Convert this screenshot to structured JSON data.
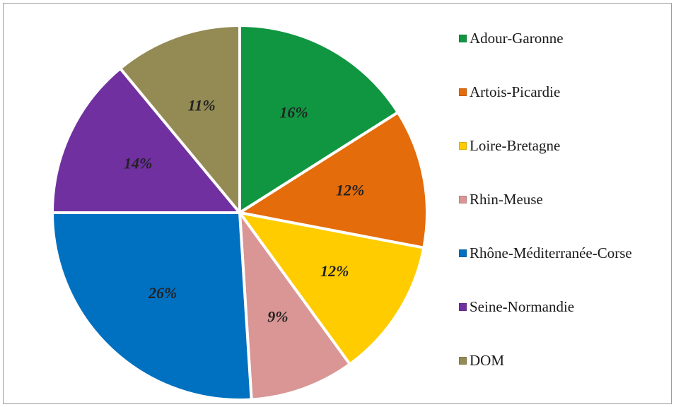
{
  "chart_data": {
    "type": "pie",
    "title": "",
    "legend_position": "right",
    "slices": [
      {
        "name": "Adour-Garonne",
        "value": 16,
        "label": "16%",
        "color": "#109641"
      },
      {
        "name": "Artois-Picardie",
        "value": 12,
        "label": "12%",
        "color": "#e46c0a"
      },
      {
        "name": "Loire-Bretagne",
        "value": 12,
        "label": "12%",
        "color": "#ffcc00"
      },
      {
        "name": "Rhin-Meuse",
        "value": 9,
        "label": "9%",
        "color": "#d99694"
      },
      {
        "name": "Rhône-Méditerranée-Corse",
        "value": 26,
        "label": "26%",
        "color": "#0070c0"
      },
      {
        "name": "Seine-Normandie",
        "value": 14,
        "label": "14%",
        "color": "#7030a0"
      },
      {
        "name": "DOM",
        "value": 11,
        "label": "11%",
        "color": "#948a54"
      }
    ]
  }
}
